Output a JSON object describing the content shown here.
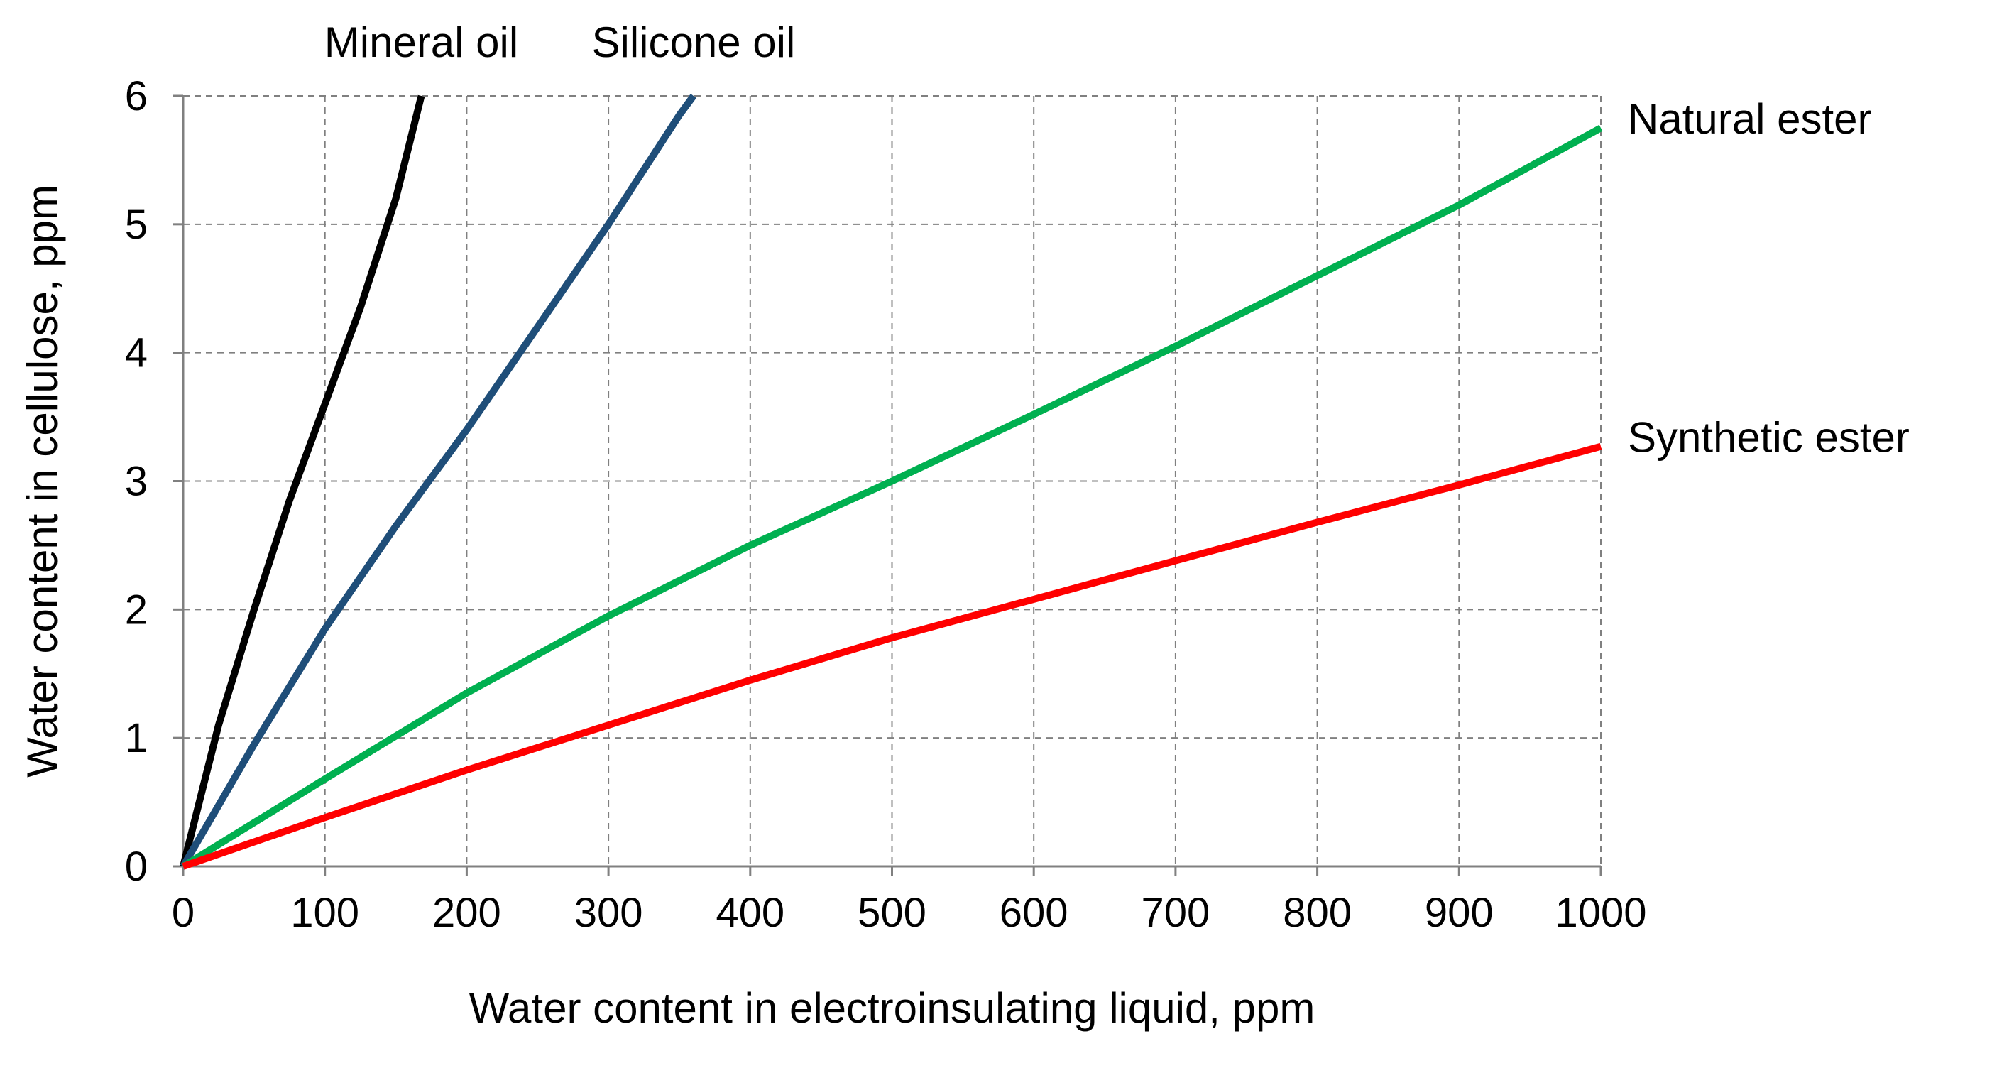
{
  "chart_data": {
    "type": "line",
    "xlabel": "Water content in electroinsulating liquid, ppm",
    "ylabel": "Water content in cellulose, ppm",
    "xlim": [
      0,
      1000
    ],
    "ylim": [
      0,
      6
    ],
    "xticks": [
      0,
      100,
      200,
      300,
      400,
      500,
      600,
      700,
      800,
      900,
      1000
    ],
    "yticks": [
      0,
      1,
      2,
      3,
      4,
      5,
      6
    ],
    "grid": true,
    "series": [
      {
        "name": "Mineral oil",
        "color": "#000000",
        "x": [
          0,
          25,
          50,
          75,
          100,
          125,
          150,
          168
        ],
        "y": [
          0,
          1.1,
          2.0,
          2.85,
          3.6,
          4.35,
          5.2,
          6.0
        ]
      },
      {
        "name": "Silicone oil",
        "color": "#1F4E79",
        "x": [
          0,
          50,
          100,
          150,
          200,
          250,
          300,
          350,
          360
        ],
        "y": [
          0,
          0.95,
          1.85,
          2.65,
          3.4,
          4.2,
          5.0,
          5.85,
          6.0
        ]
      },
      {
        "name": "Natural ester",
        "color": "#00B050",
        "x": [
          0,
          100,
          200,
          300,
          400,
          500,
          600,
          700,
          800,
          900,
          1000
        ],
        "y": [
          0,
          0.68,
          1.35,
          1.95,
          2.5,
          3.0,
          3.52,
          4.05,
          4.6,
          5.15,
          5.75
        ]
      },
      {
        "name": "Synthetic ester",
        "color": "#FF0000",
        "x": [
          0,
          100,
          200,
          300,
          400,
          500,
          600,
          700,
          800,
          900,
          1000
        ],
        "y": [
          0,
          0.38,
          0.75,
          1.1,
          1.45,
          1.78,
          2.08,
          2.38,
          2.68,
          2.97,
          3.27
        ]
      }
    ]
  }
}
